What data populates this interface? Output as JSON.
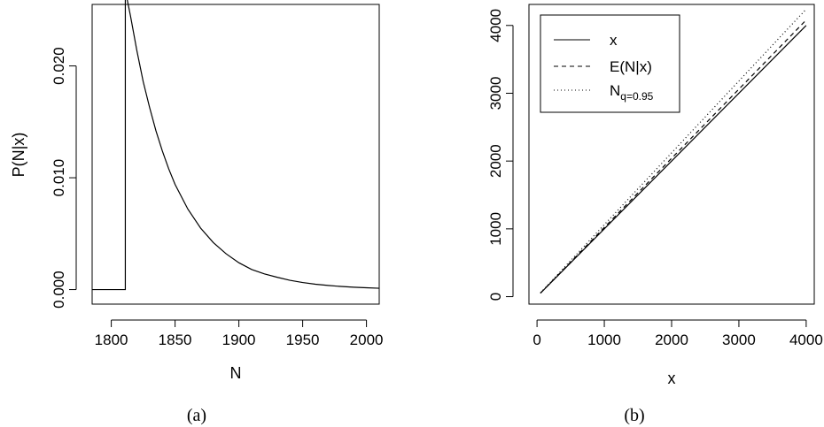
{
  "chart_data": [
    {
      "type": "line",
      "caption": "(a)",
      "xlabel": "N",
      "ylabel": "P(N|x)",
      "xlim": [
        1785,
        2010
      ],
      "ylim": [
        -0.0013,
        0.0255
      ],
      "xticks": [
        1800,
        1850,
        1900,
        1950,
        2000
      ],
      "xtick_labels": [
        "1800",
        "1850",
        "1900",
        "1950",
        "2000"
      ],
      "yticks": [
        0,
        0.01,
        0.02
      ],
      "ytick_labels": [
        "0.000",
        "0.010",
        "0.020"
      ],
      "grid": false,
      "series": [
        {
          "line_style": "solid",
          "x": [
            1785,
            1811,
            1812,
            1815,
            1820,
            1825,
            1830,
            1835,
            1840,
            1845,
            1850,
            1860,
            1870,
            1880,
            1890,
            1900,
            1910,
            1920,
            1930,
            1940,
            1950,
            1960,
            1970,
            1980,
            1990,
            2000,
            2010
          ],
          "y": [
            0,
            0,
            0.0262,
            0.0245,
            0.0214,
            0.0186,
            0.0163,
            0.0142,
            0.0124,
            0.0108,
            0.0094,
            0.0072,
            0.0055,
            0.0042,
            0.0032,
            0.0024,
            0.0018,
            0.0014,
            0.0011,
            0.00083,
            0.00063,
            0.00048,
            0.00037,
            0.00028,
            0.00021,
            0.00016,
            0.00012
          ]
        }
      ]
    },
    {
      "type": "line",
      "caption": "(b)",
      "xlabel": "x",
      "ylabel": "",
      "xlim": [
        -120,
        4120
      ],
      "ylim": [
        -110,
        4310
      ],
      "xticks": [
        0,
        1000,
        2000,
        3000,
        4000
      ],
      "xtick_labels": [
        "0",
        "1000",
        "2000",
        "3000",
        "4000"
      ],
      "yticks": [
        0,
        1000,
        2000,
        3000,
        4000
      ],
      "ytick_labels": [
        "0",
        "1000",
        "2000",
        "3000",
        "4000"
      ],
      "grid": false,
      "legend_position": "top-left",
      "series": [
        {
          "name": "x",
          "line_style": "solid",
          "x": [
            50,
            4000
          ],
          "y": [
            50,
            4000
          ]
        },
        {
          "name": "E(N|x)",
          "line_style": "dashed",
          "x": [
            50,
            4000
          ],
          "y": [
            52,
            4080
          ]
        },
        {
          "name": "N",
          "subscript": "q=0.95",
          "line_style": "dotted",
          "x": [
            50,
            4000
          ],
          "y": [
            55,
            4240
          ]
        }
      ]
    }
  ]
}
